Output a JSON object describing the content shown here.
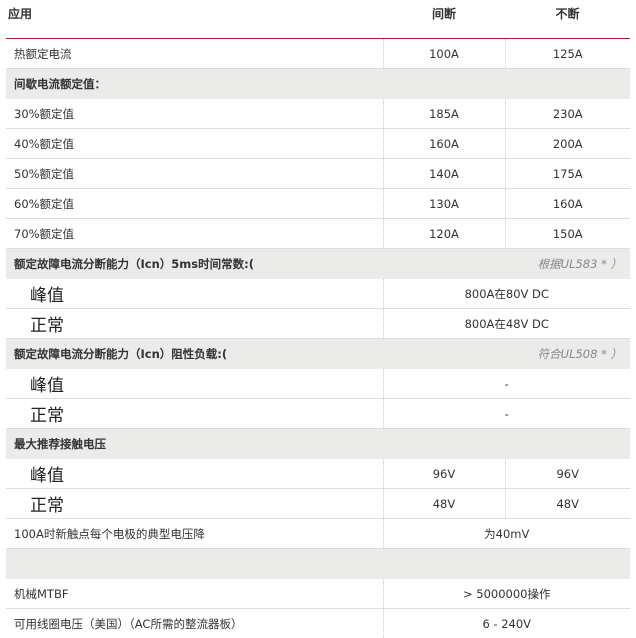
{
  "header": {
    "app": "应用",
    "intermittent": "间断",
    "continuous": "不断"
  },
  "thermal": {
    "label": "热额定电流",
    "intermittent": "100A",
    "continuous": "125A"
  },
  "intermittent_section": "间歇电流额定值：",
  "duty": [
    {
      "label": "30%额定值",
      "intermittent": "185A",
      "continuous": "230A"
    },
    {
      "label": "40%额定值",
      "intermittent": "160A",
      "continuous": "200A"
    },
    {
      "label": "50%额定值",
      "intermittent": "140A",
      "continuous": "175A"
    },
    {
      "label": "60%额定值",
      "intermittent": "130A",
      "continuous": "160A"
    },
    {
      "label": "70%额定值",
      "intermittent": "120A",
      "continuous": "150A"
    }
  ],
  "fault5ms": {
    "title": "额定故障电流分断能力（Icn）5ms时间常数:(",
    "note": "根据UL583 * ）",
    "peak": "峰值",
    "peak_value": "800A在80V DC",
    "normal": "正常",
    "normal_value": "800A在48V DC"
  },
  "faultRes": {
    "title": "额定故障电流分断能力（Icn）阻性负载:(",
    "note": "符合UL508 * ）",
    "peak": "峰值",
    "peak_value": "-",
    "normal": "正常",
    "normal_value": "-"
  },
  "contact": {
    "title": "最大推荐接触电压",
    "peak": "峰值",
    "peak_int": "96V",
    "peak_cont": "96V",
    "normal": "正常",
    "normal_int": "48V",
    "normal_cont": "48V"
  },
  "drop": {
    "label": "100A时新触点每个电极的典型电压降",
    "value": "为40mV"
  },
  "mtbf": {
    "label": "机械MTBF",
    "value": "> 5000000操作"
  },
  "coil": {
    "label": "可用线圈电压（美国）（AC所需的整流器板）",
    "value": "6 - 240V"
  },
  "colors": {
    "accent": "#a4202a",
    "section_bg": "#ebebea"
  }
}
